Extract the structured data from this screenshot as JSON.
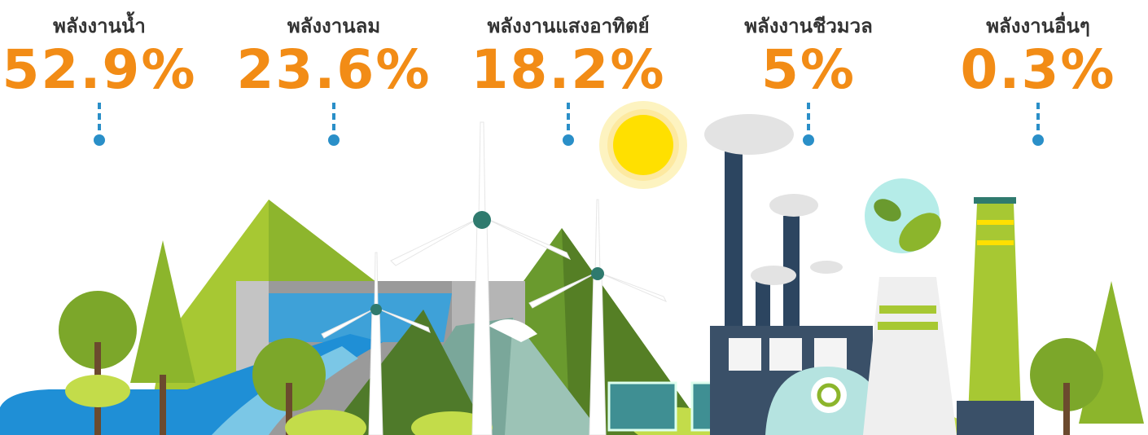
{
  "items": [
    {
      "label": "พลังงานน้ำ",
      "value": "52.9%"
    },
    {
      "label": "พลังงานลม",
      "value": "23.6%"
    },
    {
      "label": "พลังงานแสงอาทิตย์",
      "value": "18.2%"
    },
    {
      "label": "พลังงานชีวมวล",
      "value": "5%"
    },
    {
      "label": "พลังงานอื่นๆ",
      "value": "0.3%"
    }
  ]
}
